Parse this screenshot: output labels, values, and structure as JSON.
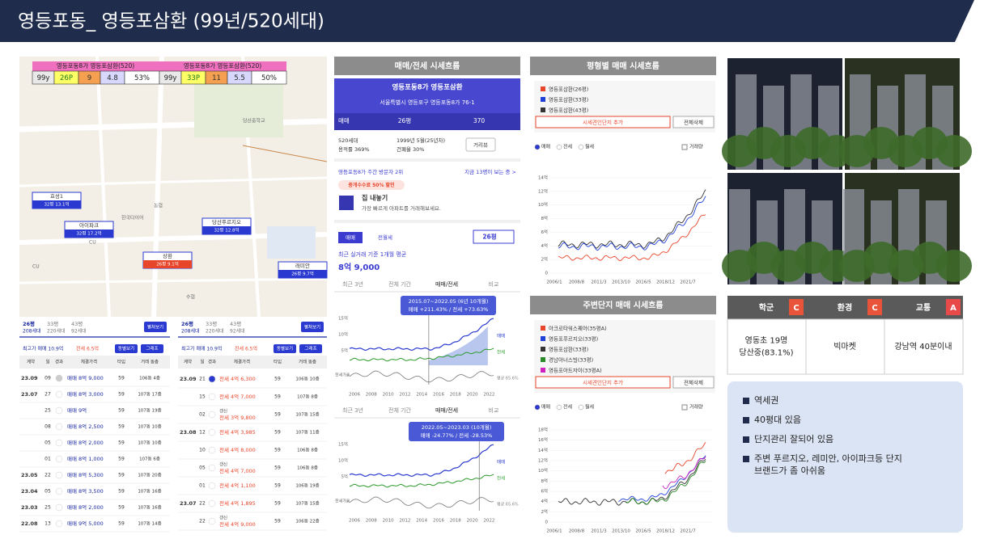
{
  "header": {
    "title": "영등포동_ 영등포삼환 (99년/520세대)"
  },
  "map": {
    "boxes": [
      {
        "name": "영등포동8가 영등포삼환(520)",
        "cells": [
          "99y",
          "26P",
          "9",
          "4.8",
          "53%"
        ]
      },
      {
        "name": "영등포동8가 영등포삼환(520)",
        "cells": [
          "99y",
          "33P",
          "11",
          "5.5",
          "50%"
        ]
      }
    ],
    "pins": [
      {
        "label": "효성1",
        "sub": "32평 13.1억"
      },
      {
        "label": "아이파크",
        "sub": "32평 17.2억"
      },
      {
        "label": "당산푸르지오",
        "sub": "32평 12.8억"
      },
      {
        "label": "상환",
        "sub": "26평 9.1억"
      },
      {
        "label": "래미안",
        "sub": "26평 9.7억"
      }
    ],
    "places": [
      "당산중학교",
      "한국타이어",
      "농협",
      "CU",
      "수협",
      "CU"
    ]
  },
  "deals": [
    {
      "sizes": [
        "26평",
        "33평",
        "43평"
      ],
      "households": [
        "208세대",
        "220세대",
        "92세대"
      ],
      "button": "펼쳐보기",
      "max": "최고가 매매 10.9억",
      "max2": "전세 6.5억",
      "buttons": [
        "동별보기",
        "그래프"
      ],
      "columns": [
        "계약",
        "일",
        "경과",
        "체결가격",
        "타입",
        "거래 동층"
      ],
      "rows": [
        {
          "month": "23.09",
          "day": "09",
          "price": "매매 8억 9,000",
          "type": "59",
          "unit": "106동 4층"
        },
        {
          "month": "23.07",
          "day": "27",
          "price": "매매 8억 3,000",
          "type": "59",
          "unit": "107동 17층"
        },
        {
          "day": "25",
          "price": "매매 9억",
          "type": "59",
          "unit": "107동 19층"
        },
        {
          "day": "08",
          "price": "매매 8억 2,500",
          "type": "59",
          "unit": "107동 10층"
        },
        {
          "day": "05",
          "price": "매매 8억 2,000",
          "type": "59",
          "unit": "107동 10층"
        },
        {
          "day": "01",
          "price": "매매 8억 1,000",
          "type": "59",
          "unit": "107동 6층"
        },
        {
          "month": "23.05",
          "day": "22",
          "price": "매매 8억 5,300",
          "type": "59",
          "unit": "107동 20층"
        },
        {
          "month": "23.04",
          "day": "05",
          "price": "매매 8억 3,500",
          "type": "59",
          "unit": "107동 16층"
        },
        {
          "month": "23.03",
          "day": "25",
          "price": "매매 8억 2,000",
          "type": "59",
          "unit": "107동 16층"
        },
        {
          "month": "22.08",
          "day": "13",
          "price": "매매 9억 5,000",
          "type": "59",
          "unit": "107동 14층"
        }
      ]
    },
    {
      "sizes": [
        "26평",
        "33평",
        "43평"
      ],
      "households": [
        "208세대",
        "220세대",
        "92세대"
      ],
      "button": "펼쳐보기",
      "max": "최고가 매매 10.9억",
      "max2": "전세 6.5억",
      "buttons": [
        "동별보기",
        "그래프"
      ],
      "columns": [
        "계약",
        "일",
        "경과",
        "체결가격",
        "타입",
        "거래 동층"
      ],
      "rows": [
        {
          "month": "23.09",
          "day": "21",
          "price": "전세 4억 6,300",
          "type": "59",
          "unit": "106동 10층"
        },
        {
          "day": "15",
          "price": "전세 4억 7,000",
          "type": "59",
          "unit": "107동 8층"
        },
        {
          "day": "02",
          "tag": "갱신",
          "price": "전세 3억 9,800",
          "type": "59",
          "unit": "107동 15층"
        },
        {
          "month": "23.08",
          "day": "12",
          "price": "전세 4억 3,985",
          "type": "59",
          "unit": "107동 11층"
        },
        {
          "day": "10",
          "price": "전세 4억 8,000",
          "type": "59",
          "unit": "106동 8층"
        },
        {
          "day": "05",
          "tag": "갱신",
          "price": "전세 4억 7,000",
          "type": "59",
          "unit": "106동 8층"
        },
        {
          "day": "01",
          "price": "전세 4억 1,100",
          "type": "59",
          "unit": "106동 19층"
        },
        {
          "month": "23.07",
          "day": "22",
          "price": "전세 4억 1,895",
          "type": "59",
          "unit": "107동 15층"
        },
        {
          "day": "22",
          "tag": "갱신",
          "price": "전세 4억 9,000",
          "type": "59",
          "unit": "106동 22층"
        }
      ]
    }
  ],
  "app": {
    "section": "매매/전세 시세흐름",
    "name": "영등포동8가 영등포삼환",
    "address": "서울특별시 영등포구 영등포동8가 76-1",
    "tab": "매매",
    "size": "26평",
    "count": "370",
    "info": [
      "520세대",
      "용적률 369%",
      "1999년 5월(25년차)",
      "건폐율 30%"
    ],
    "streetview": "거리뷰",
    "visitors": "영등포동8가 주간 방문자 2위",
    "watching": "지금 13명이 보는 중 >",
    "promo": "중개수수료 50% 할인",
    "sell": "집 내놓기",
    "sell_sub": "가장 빠르게 아파트를 거래해보세요.",
    "trade_tabs": [
      "매매",
      "전월세"
    ],
    "trade_size": "26평",
    "avg_label": "최근 실거래 기준 1개월 평균",
    "avg": "8억 9,000",
    "periods": [
      "최근 3년",
      "전체 기간",
      "매매/전세",
      "비교"
    ],
    "charts": [
      {
        "callout": [
          "2015.07~2022.05 (6년 10개월)",
          "매매 +211.43% / 전세 +73.63%"
        ]
      },
      {
        "callout": [
          "2022.05~2023.03 (10개월)",
          "매매 -24.77% / 전세 -28.53%"
        ]
      }
    ],
    "yticks": [
      "15억",
      "10억",
      "5억"
    ],
    "legend": [
      "매매",
      "전세"
    ],
    "volume": "전세가율",
    "ratio": "평균 65.6%",
    "xticks": [
      "2006",
      "2008",
      "2010",
      "2012",
      "2014",
      "2016",
      "2018",
      "2020",
      "2022"
    ]
  },
  "size_chart": {
    "title": "평형별 매매 시세흐름",
    "legend": [
      {
        "name": "영등포삼환(26평)",
        "color": "#e8462b"
      },
      {
        "name": "영등포삼환(33평)",
        "color": "#2040d8"
      },
      {
        "name": "영등포삼환(43평)",
        "color": "#333333"
      }
    ],
    "add": "시세견인단지 추가",
    "clear": "전체삭제",
    "options": [
      "매매",
      "전세",
      "월세"
    ],
    "volume": "거래량",
    "yticks": [
      "14억",
      "12억",
      "10억",
      "8억",
      "6억",
      "4억",
      "2억",
      "0"
    ],
    "xticks": [
      "2006/1",
      "2008/8",
      "2011/3",
      "2013/10",
      "2016/5",
      "2018/12",
      "2021/7"
    ]
  },
  "near_chart": {
    "title": "주변단지 매매 시세흐름",
    "legend": [
      {
        "name": "아크로타워스퀘어(35평A)",
        "color": "#e8462b"
      },
      {
        "name": "영등포푸르지오(33평)",
        "color": "#2040d8"
      },
      {
        "name": "영등포삼환(33평)",
        "color": "#333333"
      },
      {
        "name": "경남아너스빌(33평)",
        "color": "#2a8a2a"
      },
      {
        "name": "영등포아트자이(33평A)",
        "color": "#d020c0"
      }
    ],
    "add": "시세견인단지 추가",
    "clear": "전체삭제",
    "options": [
      "매매",
      "전세",
      "월세"
    ],
    "volume": "거래량",
    "yticks": [
      "18억",
      "16억",
      "14억",
      "12억",
      "10억",
      "8억",
      "6억",
      "4억",
      "2억",
      "0"
    ],
    "xticks": [
      "2006/1",
      "2008/8",
      "2011/3",
      "2013/10",
      "2016/5",
      "2018/12",
      "2021/7"
    ]
  },
  "rating": {
    "heads": [
      {
        "name": "학군",
        "grade": "C"
      },
      {
        "name": "환경",
        "grade": "C"
      },
      {
        "name": "교통",
        "grade": "A"
      }
    ],
    "cells": [
      [
        "영동초 19명",
        "당산중(83.1%)"
      ],
      [
        "빅마켓"
      ],
      [
        "강남역 40분이내"
      ]
    ]
  },
  "notes": [
    [
      "역세권"
    ],
    [
      "40평대 있음"
    ],
    [
      "단지관리 잘되어 있음"
    ],
    [
      "주변 푸르지오, 레미안, 아이파크등 단지",
      "브랜드가 좀 아쉬움"
    ]
  ]
}
